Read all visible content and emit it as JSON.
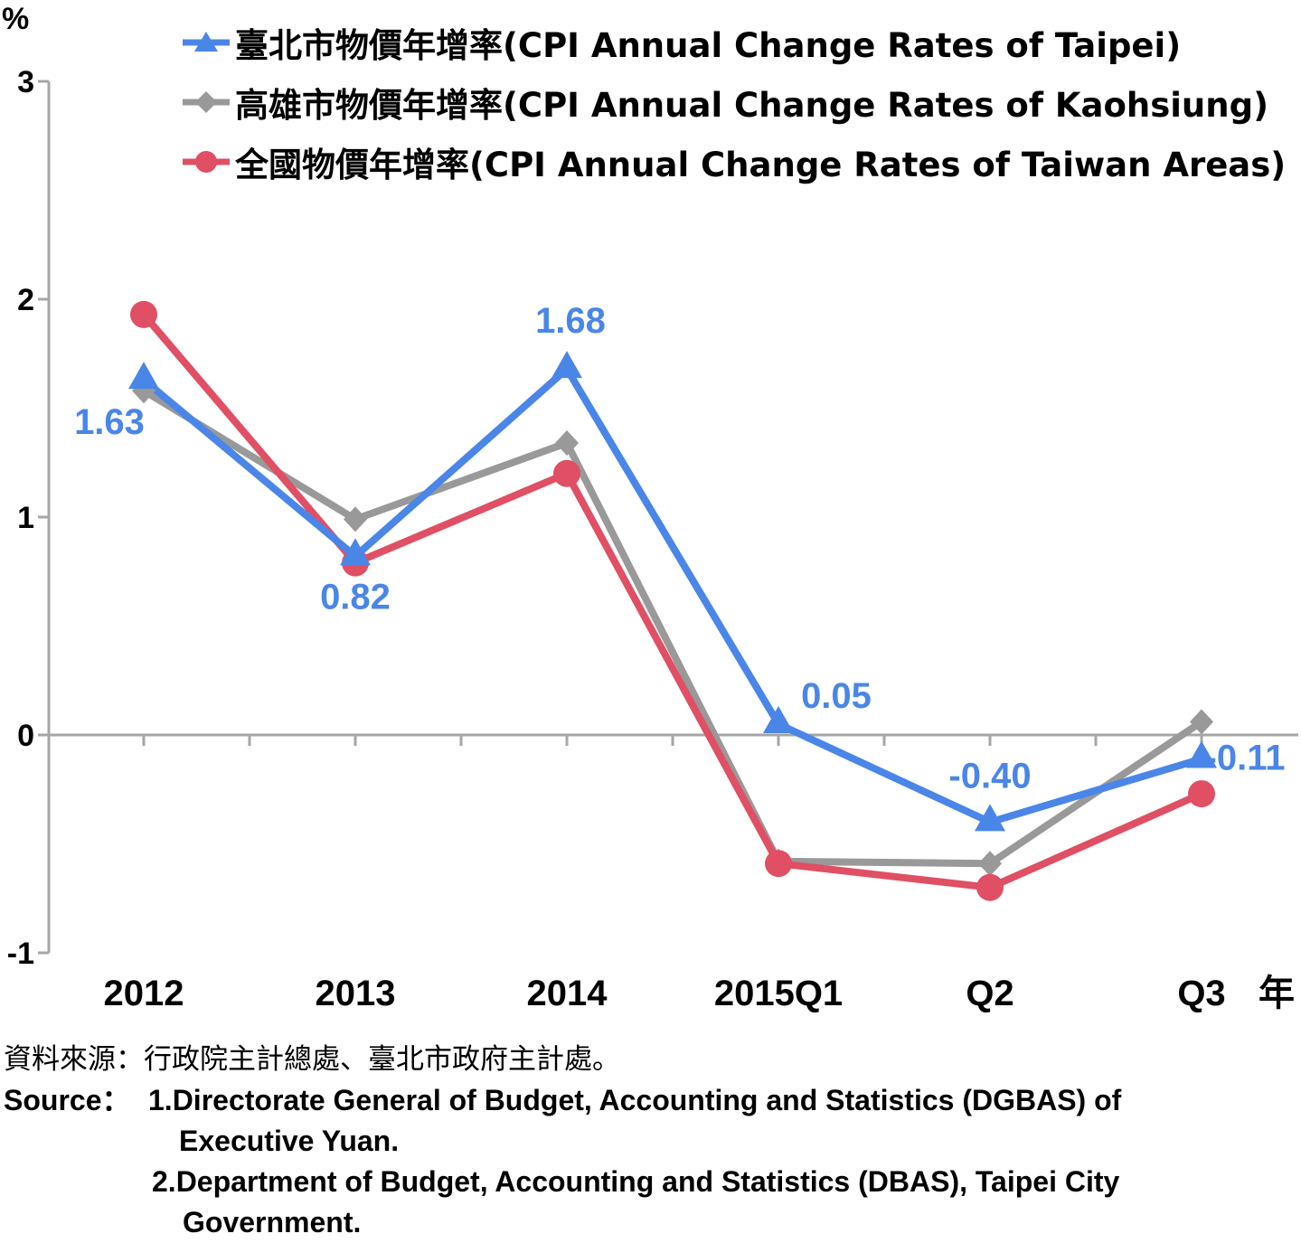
{
  "chart_data": {
    "type": "line",
    "unit_label": "%",
    "x_unit_label": "年",
    "categories": [
      "2012",
      "2013",
      "2014",
      "2015Q1",
      "Q2",
      "Q3"
    ],
    "ylim": [
      -1,
      3
    ],
    "yticks": [
      "-1",
      "0",
      "1",
      "2",
      "3"
    ],
    "grid": false,
    "legend_position": "top",
    "series": [
      {
        "name": "臺北市物價年增率(CPI Annual Change Rates of Taipei)",
        "color": "#4a86e8",
        "marker": "triangle",
        "values": [
          1.63,
          0.82,
          1.68,
          0.05,
          -0.4,
          -0.11
        ],
        "labels": [
          "1.63",
          "0.82",
          "1.68",
          "0.05",
          "-0.40",
          "-0.11"
        ]
      },
      {
        "name": "高雄市物價年增率(CPI Annual Change Rates of Kaohsiung)",
        "color": "#999999",
        "marker": "diamond",
        "values": [
          1.58,
          0.99,
          1.34,
          -0.58,
          -0.59,
          0.06
        ]
      },
      {
        "name": "全國物價年增率(CPI Annual Change Rates of Taiwan Areas)",
        "color": "#e04f64",
        "marker": "circle",
        "values": [
          1.93,
          0.79,
          1.2,
          -0.59,
          -0.7,
          -0.27
        ]
      }
    ]
  },
  "source": {
    "zh": "資料來源：行政院主計總處、臺北市政府主計處。",
    "en_label": "Source：",
    "en_item1_line1": "1.Directorate General of Budget, Accounting and Statistics (DGBAS) of",
    "en_item1_line2": "Executive Yuan.",
    "en_item2_line1": "2.Department of Budget, Accounting and Statistics (DBAS), Taipei City",
    "en_item2_line2": "Government."
  }
}
